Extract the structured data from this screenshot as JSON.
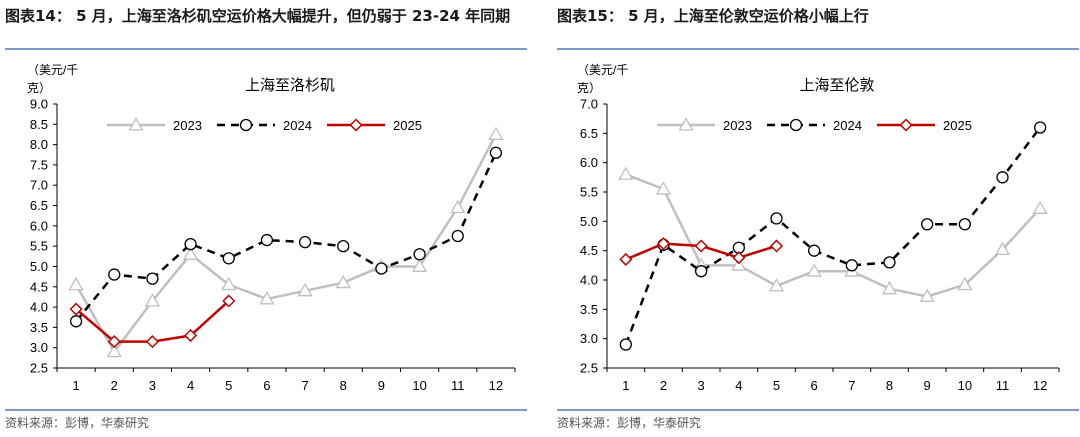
{
  "figures": [
    {
      "figure_title": "图表14：  5 月，上海至洛杉矶空运价格大幅提升，但仍弱于 23-24 年同期",
      "source": "资料来源：彭博，华泰研究",
      "chart_data": {
        "type": "line",
        "title": "上海至洛杉矶",
        "ylabel": "（美元/千克）",
        "categories": [
          "1",
          "2",
          "3",
          "4",
          "5",
          "6",
          "7",
          "8",
          "9",
          "10",
          "11",
          "12"
        ],
        "ylim": [
          2.5,
          9.0
        ],
        "yticks": [
          "2.5",
          "3.0",
          "3.5",
          "4.0",
          "4.5",
          "5.0",
          "5.5",
          "6.0",
          "6.5",
          "7.0",
          "7.5",
          "8.0",
          "8.5",
          "9.0"
        ],
        "legend_position": "top",
        "series": [
          {
            "name": "2023",
            "color": "#bfbfbf",
            "dash": "solid",
            "marker": "triangle",
            "values": [
              4.55,
              2.9,
              4.15,
              5.3,
              4.55,
              4.2,
              4.4,
              4.6,
              5.0,
              5.0,
              6.45,
              8.25
            ]
          },
          {
            "name": "2024",
            "color": "#000000",
            "dash": "dashed",
            "marker": "circle",
            "values": [
              3.65,
              4.8,
              4.7,
              5.55,
              5.2,
              5.65,
              5.6,
              5.5,
              4.95,
              5.3,
              5.75,
              7.8
            ]
          },
          {
            "name": "2025",
            "color": "#c00000",
            "dash": "solid",
            "marker": "diamond",
            "values": [
              3.95,
              3.15,
              3.15,
              3.3,
              4.15,
              null,
              null,
              null,
              null,
              null,
              null,
              null
            ]
          }
        ]
      }
    },
    {
      "figure_title": "图表15：  5 月，上海至伦敦空运价格小幅上行",
      "source": "资料来源：彭博，华泰研究",
      "chart_data": {
        "type": "line",
        "title": "上海至伦敦",
        "ylabel": "（美元/千克）",
        "categories": [
          "1",
          "2",
          "3",
          "4",
          "5",
          "6",
          "7",
          "8",
          "9",
          "10",
          "11",
          "12"
        ],
        "ylim": [
          2.5,
          7.0
        ],
        "yticks": [
          "2.5",
          "3.0",
          "3.5",
          "4.0",
          "4.5",
          "5.0",
          "5.5",
          "6.0",
          "6.5",
          "7.0"
        ],
        "legend_position": "top",
        "series": [
          {
            "name": "2023",
            "color": "#bfbfbf",
            "dash": "solid",
            "marker": "triangle",
            "values": [
              5.8,
              5.55,
              4.25,
              4.25,
              3.9,
              4.15,
              4.15,
              3.85,
              3.72,
              3.92,
              4.52,
              5.22
            ]
          },
          {
            "name": "2024",
            "color": "#000000",
            "dash": "dashed",
            "marker": "circle",
            "values": [
              2.9,
              4.6,
              4.15,
              4.55,
              5.05,
              4.5,
              4.25,
              4.3,
              4.95,
              4.95,
              5.75,
              6.6
            ]
          },
          {
            "name": "2025",
            "color": "#c00000",
            "dash": "solid",
            "marker": "diamond",
            "values": [
              4.35,
              4.62,
              4.58,
              4.38,
              4.58,
              null,
              null,
              null,
              null,
              null,
              null,
              null
            ]
          }
        ]
      }
    }
  ]
}
